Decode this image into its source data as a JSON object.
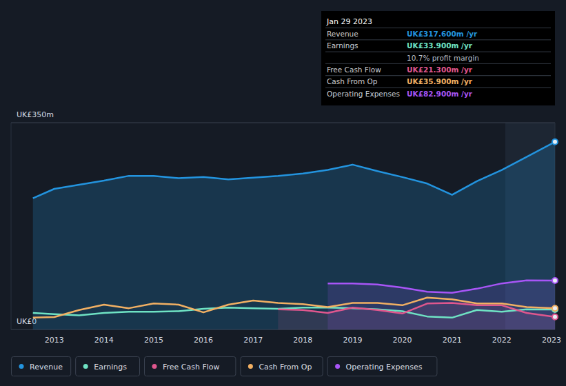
{
  "chart_data": {
    "type": "line",
    "x": [
      2012.57,
      2013,
      2013.5,
      2014,
      2014.5,
      2015,
      2015.5,
      2016,
      2016.5,
      2017,
      2017.5,
      2018,
      2018.5,
      2019,
      2019.5,
      2020,
      2020.5,
      2021,
      2021.5,
      2022,
      2022.5,
      2023.07
    ],
    "xlim": [
      2012.13,
      2023.07
    ],
    "xticks": [
      2013,
      2014,
      2015,
      2016,
      2017,
      2018,
      2019,
      2020,
      2021,
      2022,
      2023
    ],
    "ylim": [
      0,
      350
    ],
    "yticks": [
      {
        "value": 0,
        "label": "UK£0"
      },
      {
        "value": 350,
        "label": "UK£350m"
      }
    ],
    "grid": true,
    "legend": "bottom-left",
    "series": [
      {
        "name": "Revenue",
        "color": "#2394df",
        "values": [
          222,
          238,
          245,
          252,
          260,
          260,
          256,
          258,
          254,
          257,
          260,
          264,
          270,
          279,
          268,
          258,
          247,
          228,
          251,
          270,
          292,
          317.6
        ]
      },
      {
        "name": "Earnings",
        "color": "#6fe3c4",
        "values": [
          28,
          26,
          24,
          28,
          30,
          30,
          31,
          35,
          37,
          36,
          35,
          37,
          37,
          36,
          34,
          31,
          22,
          20,
          33,
          30,
          34,
          33.9
        ]
      },
      {
        "name": "Free Cash Flow",
        "color": "#e0578e",
        "values": [
          null,
          null,
          null,
          null,
          null,
          null,
          null,
          null,
          null,
          null,
          34,
          33,
          28,
          37,
          33,
          27,
          44,
          45,
          41,
          41,
          28,
          21.3
        ]
      },
      {
        "name": "Cash From Op",
        "color": "#f2b063",
        "values": [
          20,
          21,
          33,
          42,
          36,
          44,
          42,
          29,
          42,
          49,
          45,
          43,
          38,
          45,
          45,
          41,
          54,
          51,
          44,
          44,
          38,
          35.9
        ]
      },
      {
        "name": "Operating Expenses",
        "color": "#a855f7",
        "values": [
          null,
          null,
          null,
          null,
          null,
          null,
          null,
          null,
          null,
          null,
          null,
          null,
          78,
          78,
          76,
          71,
          64,
          62,
          69,
          78,
          83,
          82.9
        ]
      }
    ],
    "tooltip": {
      "date": "Jan 29 2023",
      "rows": [
        {
          "label": "Revenue",
          "value": "UK£317.600m /yr"
        },
        {
          "label": "Earnings",
          "value": "UK£33.900m /yr"
        },
        {
          "label": null,
          "value": "10.7% profit margin"
        },
        {
          "label": "Free Cash Flow",
          "value": "UK£21.300m /yr"
        },
        {
          "label": "Cash From Op",
          "value": "UK£35.900m /yr"
        },
        {
          "label": "Operating Expenses",
          "value": "UK£82.900m /yr"
        }
      ]
    }
  }
}
